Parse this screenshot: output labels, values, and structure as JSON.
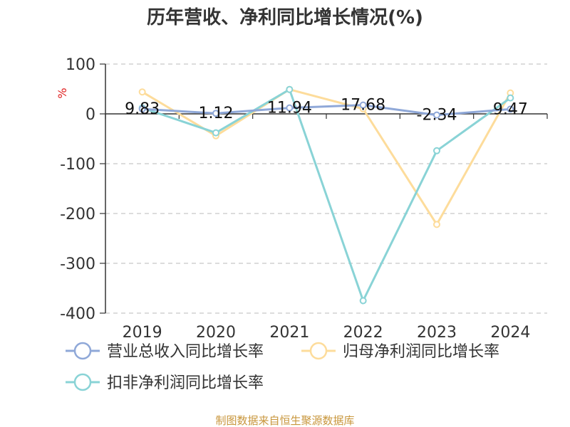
{
  "chart_data": {
    "type": "line",
    "title": "历年营收、净利同比增长情况(%)",
    "ylabel": "%",
    "categories": [
      "2019",
      "2020",
      "2021",
      "2022",
      "2023",
      "2024"
    ],
    "ylim": [
      -400,
      100
    ],
    "yticks": [
      "100",
      "0",
      "-100",
      "-200",
      "-300",
      "-400"
    ],
    "grid": true,
    "legend_position": "bottom",
    "series": [
      {
        "name": "营业总收入同比增长率",
        "color": "#8fa8d8",
        "values": [
          9.83,
          1.12,
          11.94,
          17.68,
          -2.34,
          9.47
        ],
        "labels": [
          "9.83",
          "1.12",
          "11.94",
          "17.68",
          "-2.34",
          "9.47"
        ]
      },
      {
        "name": "归母净利润同比增长率",
        "color": "#fddc9b",
        "values": [
          44,
          -44,
          49,
          10,
          -222,
          42
        ]
      },
      {
        "name": "扣非净利润同比增长率",
        "color": "#89d3d6",
        "values": [
          12,
          -38,
          49,
          -375,
          -74,
          32
        ]
      }
    ]
  },
  "footer": "制图数据来自恒生聚源数据库"
}
